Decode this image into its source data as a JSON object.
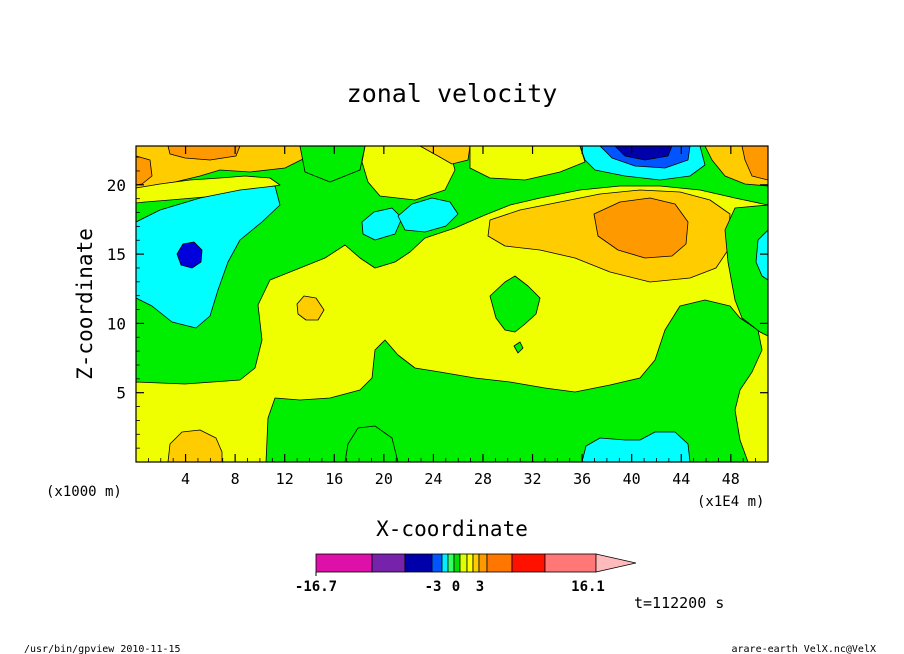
{
  "chart_data": {
    "type": "heatmap",
    "title": "zonal velocity",
    "xlabel": "X-coordinate",
    "ylabel": "Z-coordinate",
    "x_unit_left": "(x1000 m)",
    "x_unit_right": "(x1E4 m)",
    "xlim": [
      0,
      51
    ],
    "ylim": [
      0,
      22.8
    ],
    "x_ticks": [
      "4",
      "8",
      "12",
      "16",
      "20",
      "24",
      "28",
      "32",
      "36",
      "40",
      "44",
      "48"
    ],
    "y_ticks": [
      "5",
      "10",
      "15",
      "20"
    ],
    "time_label": "t=112200 s",
    "colorbar": {
      "min_label": "-16.7",
      "max_label": "16.1",
      "mid_labels": [
        "-3",
        "0",
        "3"
      ],
      "levels": [
        -16.7,
        -12,
        -9,
        -5,
        -3,
        -2,
        -1,
        0,
        1,
        2,
        3,
        5,
        9,
        12,
        16.1
      ],
      "colors": [
        "#dd11aa",
        "#7722aa",
        "#0000aa",
        "#0055ff",
        "#00eeff",
        "#33ff66",
        "#00dd00",
        "#ddff00",
        "#ffff00",
        "#ffcc00",
        "#ff9900",
        "#ff7700",
        "#ff1100",
        "#ff7777",
        "#ffbbbb"
      ]
    },
    "regions": [
      {
        "level": "0 to 1",
        "color": "#efff00",
        "description": "lower layer and central body"
      },
      {
        "level": "-1 to 0",
        "color": "#00ee00",
        "description": "band around z=7-14 and upper left"
      },
      {
        "level": "-2 to -1",
        "color": "#00ffff",
        "description": "cyan patches left, centre-top, bottom right"
      },
      {
        "level": "1 to 2",
        "color": "#ffcc00",
        "description": "upper right and upper left"
      },
      {
        "level": "2 to 3",
        "color": "#ff9900",
        "description": "max near x=40, z=17"
      },
      {
        "level": "< -3",
        "color": "#0000aa",
        "description": "cores near x=4,z=15 and x=40,z=22"
      }
    ]
  },
  "footer": {
    "left": "/usr/bin/gpview  2010-11-15",
    "right": "arare-earth_VelX.nc@VelX"
  }
}
